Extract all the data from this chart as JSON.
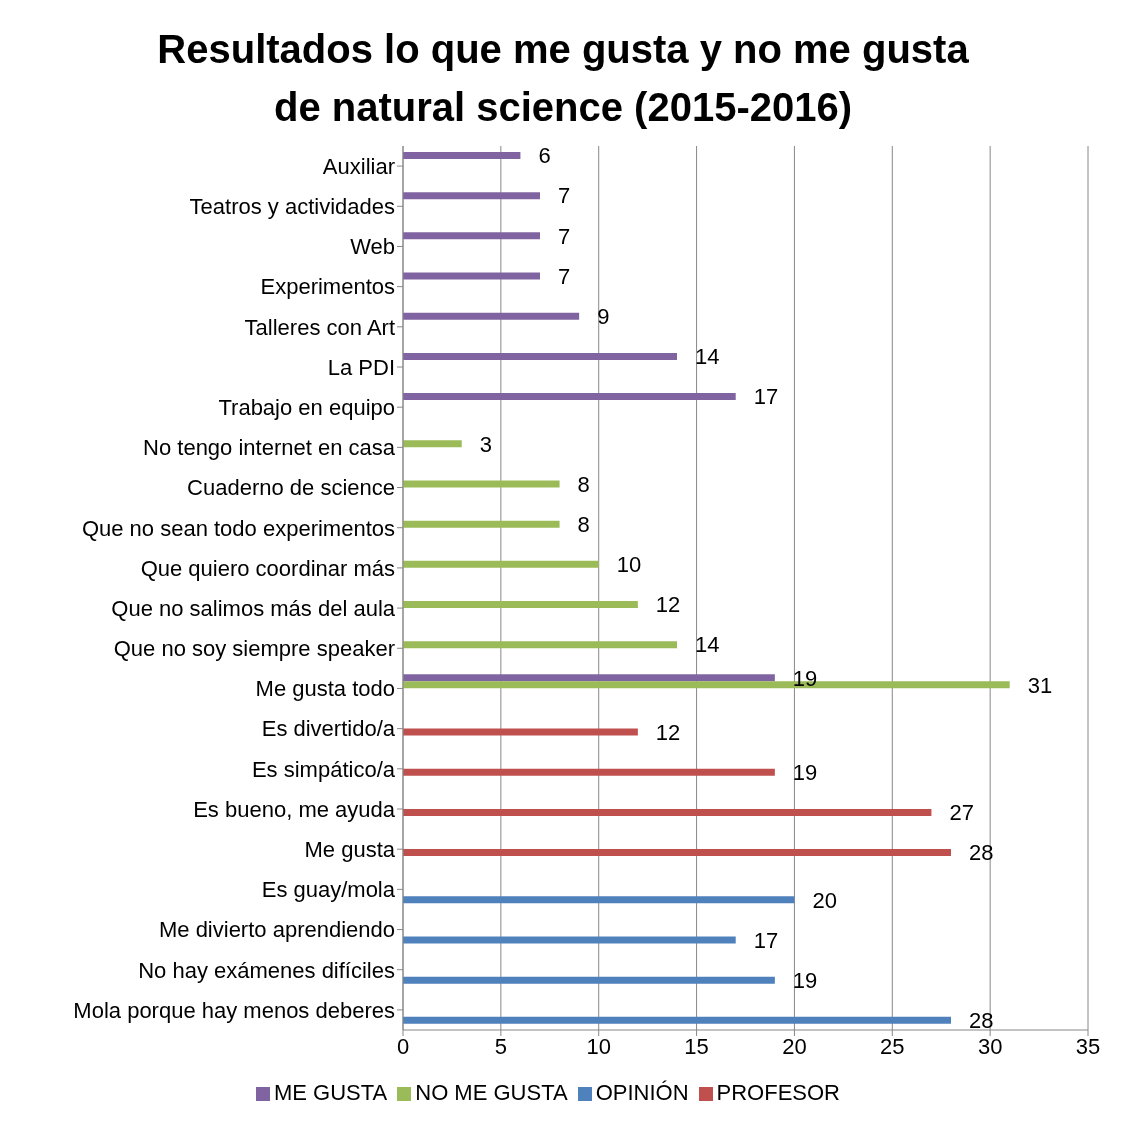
{
  "chart_data": {
    "type": "bar",
    "orientation": "horizontal",
    "title": "Resultados lo que me gusta y no me gusta de natural science (2015-2016)",
    "categories": [
      "Auxiliar",
      "Teatros y actividades",
      "Web",
      "Experimentos",
      "Talleres con Art",
      "La PDI",
      "Trabajo en equipo",
      "No tengo internet en casa",
      "Cuaderno de science",
      "Que no sean todo experimentos",
      "Que quiero coordinar más",
      "Que no salimos más del aula",
      "Que no soy siempre speaker",
      "Me gusta todo",
      "Es divertido/a",
      "Es simpático/a",
      "Es bueno, me ayuda",
      "Me gusta",
      "Es guay/mola",
      "Me divierto aprendiendo",
      "No hay exámenes difíciles",
      "Mola porque hay menos deberes"
    ],
    "series": [
      {
        "name": "ME GUSTA",
        "color": "#8064a2",
        "values": [
          6,
          7,
          7,
          7,
          9,
          14,
          17,
          null,
          null,
          null,
          null,
          null,
          null,
          19,
          null,
          null,
          null,
          null,
          null,
          null,
          null,
          null
        ]
      },
      {
        "name": "NO ME GUSTA",
        "color": "#9bbb59",
        "values": [
          null,
          null,
          null,
          null,
          null,
          null,
          null,
          3,
          8,
          8,
          10,
          12,
          14,
          31,
          null,
          null,
          null,
          null,
          null,
          null,
          null,
          null
        ]
      },
      {
        "name": "PROFESOR",
        "color": "#c0504d",
        "values": [
          null,
          null,
          null,
          null,
          null,
          null,
          null,
          null,
          null,
          null,
          null,
          null,
          null,
          null,
          12,
          19,
          27,
          28,
          null,
          null,
          null,
          null
        ]
      },
      {
        "name": "OPINIÓN",
        "color": "#4f81bd",
        "values": [
          null,
          null,
          null,
          null,
          null,
          null,
          null,
          null,
          null,
          null,
          null,
          null,
          null,
          null,
          null,
          null,
          null,
          null,
          20,
          17,
          19,
          28
        ]
      }
    ],
    "xlim": [
      0,
      35
    ],
    "xticks": [
      0,
      5,
      10,
      15,
      20,
      25,
      30,
      35
    ],
    "grid": "x",
    "legend": "bottom",
    "data_labels": true
  }
}
